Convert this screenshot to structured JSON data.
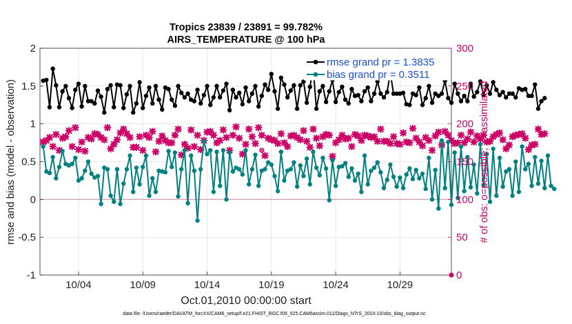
{
  "chart_data": {
    "type": "line",
    "title_line1": "Tropics 23839 / 23891 = 99.782%",
    "title_line2": "AIRS_TEMPERATURE @ 100 hPa",
    "xlabel": "Oct.01,2010 00:00:00 start",
    "ylabel_left": "rmse and bias (model - observation)",
    "ylabel_right": "# of obs: o=possible; ×=assimilated",
    "x_ticks": [
      "10/04",
      "10/09",
      "10/14",
      "10/19",
      "10/24",
      "10/29"
    ],
    "x_tick_days": [
      4,
      9,
      14,
      19,
      24,
      29
    ],
    "x_range_days": [
      1,
      33
    ],
    "ylim_left": [
      -1,
      2
    ],
    "ylim_right": [
      0,
      300
    ],
    "y_ticks_left": [
      "-1",
      "-0.5",
      "0",
      "0.5",
      "1",
      "1.5",
      "2"
    ],
    "y_ticks_left_values": [
      -1,
      -0.5,
      0,
      0.5,
      1,
      1.5,
      2
    ],
    "y_ticks_right": [
      "0",
      "50",
      "100",
      "150",
      "200",
      "250",
      "300"
    ],
    "y_ticks_right_values": [
      0,
      50,
      100,
      150,
      200,
      250,
      300
    ],
    "grid": true,
    "legend_position": "top-right",
    "legend": [
      "rmse grand pr = 1.3835",
      "bias grand pr = 0.3511"
    ],
    "colors": {
      "rmse": "#000000",
      "bias": "#008080",
      "obs": "#cc0066",
      "zero_line": "#d4a6b3"
    },
    "x_start_day": 1.25,
    "x_step_days": 0.25,
    "series": [
      {
        "name": "rmse",
        "values": [
          1.57,
          1.58,
          1.22,
          1.73,
          1.51,
          1.22,
          1.43,
          1.5,
          1.34,
          1.21,
          1.45,
          1.53,
          1.23,
          1.5,
          1.3,
          1.3,
          1.27,
          1.44,
          1.36,
          1.15,
          1.46,
          1.51,
          1.22,
          1.52,
          1.51,
          1.21,
          1.39,
          1.5,
          1.15,
          1.27,
          1.55,
          1.21,
          1.37,
          1.48,
          1.27,
          1.5,
          1.32,
          1.19,
          1.48,
          1.46,
          1.32,
          1.24,
          1.5,
          1.41,
          1.35,
          1.4,
          1.32,
          1.3,
          1.45,
          1.27,
          1.38,
          1.5,
          1.25,
          1.35,
          1.5,
          1.35,
          1.44,
          1.53,
          1.18,
          1.45,
          1.35,
          1.41,
          1.26,
          1.48,
          1.3,
          1.4,
          1.5,
          1.23,
          1.37,
          1.52,
          1.45,
          1.66,
          1.43,
          1.2,
          1.61,
          1.52,
          1.35,
          1.44,
          1.51,
          1.2,
          1.51,
          1.56,
          1.28,
          1.49,
          1.74,
          1.2,
          1.43,
          1.5,
          1.29,
          1.43,
          1.58,
          1.29,
          1.42,
          1.49,
          1.32,
          1.27,
          1.46,
          1.37,
          1.38,
          1.3,
          1.43,
          1.48,
          1.3,
          1.4,
          1.56,
          1.4,
          1.35,
          1.42,
          1.68,
          1.4,
          1.4,
          1.4,
          1.41,
          1.26,
          1.25,
          1.4,
          1.38,
          1.48,
          1.25,
          1.34,
          1.5,
          1.28,
          1.4,
          1.37,
          1.4,
          1.57,
          1.34,
          1.28,
          1.53,
          1.4,
          1.3,
          1.37,
          1.3,
          1.53,
          1.36,
          1.42,
          1.56,
          1.38,
          1.51,
          1.4,
          1.55,
          1.45,
          1.38,
          1.42,
          1.35,
          1.4,
          1.4,
          1.35,
          1.47,
          1.45,
          1.46,
          1.37,
          1.37,
          1.52,
          1.2,
          1.3,
          1.34
        ]
      },
      {
        "name": "bias",
        "values": [
          0.7,
          0.37,
          0.35,
          0.56,
          0.28,
          0.43,
          0.64,
          0.47,
          0.45,
          0.47,
          0.55,
          0.25,
          0.28,
          0.38,
          0.5,
          0.34,
          0.29,
          0.31,
          -0.06,
          0.42,
          0.4,
          0.05,
          -0.03,
          0.4,
          -0.06,
          0.21,
          0.4,
          0.58,
          0.1,
          0.42,
          0.2,
          0.43,
          0.58,
          0.05,
          0.28,
          0.1,
          0.38,
          0.37,
          0.36,
          0.64,
          0.43,
          0.62,
          0.04,
          0.4,
          0.65,
          -0.05,
          0.58,
          0.38,
          -0.28,
          0.4,
          0.77,
          0.6,
          0.65,
          0.1,
          0.63,
          0.18,
          0.65,
          0.0,
          0.62,
          0.37,
          0.42,
          0.4,
          0.33,
          0.65,
          0.2,
          0.4,
          0.59,
          0.18,
          0.38,
          0.4,
          0.49,
          0.46,
          0.31,
          0.11,
          0.63,
          0.25,
          0.38,
          0.4,
          0.49,
          0.17,
          0.45,
          0.31,
          0.54,
          0.2,
          0.63,
          0.42,
          0.32,
          0.55,
          0.41,
          -0.01,
          0.52,
          0.18,
          0.43,
          0.44,
          0.48,
          0.3,
          0.41,
          0.25,
          0.34,
          0.1,
          0.58,
          0.2,
          0.38,
          0.42,
          0.49,
          0.36,
          0.15,
          0.26,
          0.46,
          0.3,
          0.17,
          0.29,
          0.15,
          0.33,
          0.41,
          0.27,
          0.39,
          0.28,
          0.34,
          0.14,
          0.55,
          0.0,
          0.39,
          -0.12,
          0.78,
          0.15,
          0.76,
          -0.07,
          0.62,
          0.02,
          0.7,
          0.11,
          0.56,
          0.16,
          0.46,
          0.08,
          0.73,
          0.19,
          0.6,
          -0.03,
          0.67,
          0.05,
          0.55,
          0.17,
          0.37,
          0.4,
          0.05,
          0.5,
          0.1,
          0.7,
          0.4,
          0.47,
          0.18,
          0.56,
          0.21,
          0.51,
          0.15,
          0.58,
          0.18,
          0.14
        ]
      },
      {
        "name": "obs_assimilated",
        "values": [
          176,
          178,
          182,
          170,
          186,
          165,
          181,
          183,
          191,
          170,
          195,
          166,
          176,
          164,
          182,
          180,
          187,
          186,
          182,
          179,
          195,
          167,
          173,
          179,
          188,
          193,
          187,
          182,
          169,
          169,
          183,
          165,
          185,
          182,
          190,
          163,
          177,
          184,
          178,
          175,
          175,
          185,
          193,
          159,
          173,
          168,
          192,
          170,
          185,
          166,
          178,
          189,
          190,
          185,
          175,
          178,
          192,
          182,
          165,
          185,
          196,
          181,
          160,
          173,
          193,
          183,
          174,
          195,
          185,
          158,
          181,
          179,
          178,
          174,
          187,
          175,
          170,
          184,
          185,
          182,
          179,
          191,
          177,
          169,
          193,
          181,
          171,
          183,
          186,
          185,
          157,
          175,
          179,
          185,
          180,
          181,
          170,
          186,
          184,
          178,
          185,
          184,
          182,
          183,
          177,
          193,
          177,
          177,
          174,
          183,
          174,
          173,
          188,
          176,
          175,
          194,
          181,
          176,
          171,
          182,
          178,
          165,
          184,
          189,
          172,
          190,
          185,
          178,
          174,
          175,
          185,
          175,
          180,
          189,
          176,
          184,
          180,
          185,
          176,
          177,
          183,
          186,
          188,
          179,
          167,
          172,
          183,
          185,
          186,
          187,
          181,
          166,
          172,
          173,
          193,
          186,
          187
        ]
      },
      {
        "name": "obs_possible",
        "extra_points": [
          {
            "day": 18.25,
            "value": 165
          }
        ]
      }
    ]
  },
  "footer": "data file: /Users/raeder/DAI/ATM_forcXX/CAM6_setup/f.e21.FHIST_BGC.f09_025.CAM6assim.011/Diags_NTrS_2010-10/obs_diag_output.nc"
}
